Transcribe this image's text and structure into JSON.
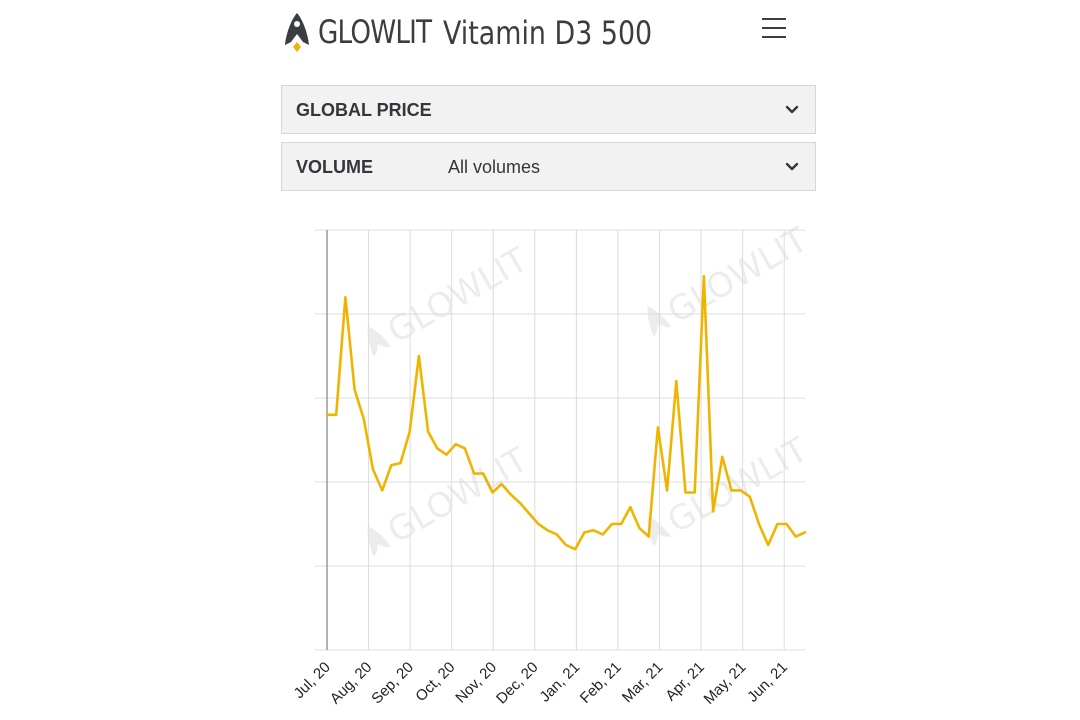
{
  "header": {
    "brand": "GLOWLIT",
    "title": "Vitamin D3 500",
    "menu_icon": "hamburger-menu-icon"
  },
  "filters": {
    "price": {
      "label": "GLOBAL PRICE",
      "value": ""
    },
    "volume": {
      "label": "VOLUME",
      "value": "All volumes"
    }
  },
  "colors": {
    "line": "#f0b400",
    "grid": "#dcdcdc",
    "text": "#33363a"
  },
  "watermark": "GLOWLIT",
  "chart_data": {
    "type": "line",
    "title": "",
    "xlabel": "",
    "ylabel": "",
    "grid": true,
    "x_tick_labels": [
      "Jul, 20",
      "Aug, 20",
      "Sep, 20",
      "Oct, 20",
      "Nov, 20",
      "Dec, 20",
      "Jan, 21",
      "Feb, 21",
      "Mar, 21",
      "Apr, 21",
      "May, 21",
      "Jun, 21"
    ],
    "x_start": "Jul, 20",
    "x_end": "Jun, 21",
    "series": [
      {
        "values": [
          0.56,
          0.56,
          0.84,
          0.62,
          0.55,
          0.43,
          0.38,
          0.44,
          0.445,
          0.52,
          0.7,
          0.52,
          0.48,
          0.465,
          0.49,
          0.48,
          0.42,
          0.42,
          0.375,
          0.395,
          0.37,
          0.35,
          0.325,
          0.3,
          0.285,
          0.275,
          0.25,
          0.24,
          0.28,
          0.285,
          0.275,
          0.3,
          0.3,
          0.34,
          0.29,
          0.27,
          0.53,
          0.38,
          0.64,
          0.375,
          0.375,
          0.89,
          0.33,
          0.46,
          0.38,
          0.38,
          0.365,
          0.3,
          0.25,
          0.3,
          0.3,
          0.27,
          0.28
        ]
      }
    ]
  }
}
